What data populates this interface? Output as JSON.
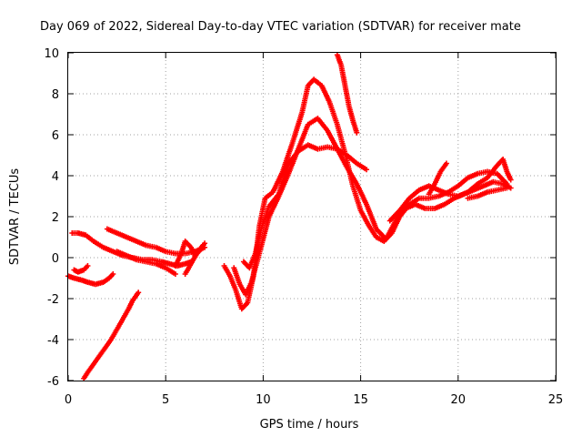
{
  "chart_data": {
    "type": "scatter",
    "title": "Day 069 of 2022, Sidereal Day-to-day VTEC variation (SDTVAR) for receiver mate",
    "xlabel": "GPS time / hours",
    "ylabel": "SDTVAR / TECUs",
    "xlim": [
      0,
      25
    ],
    "ylim": [
      -6,
      10
    ],
    "xticks": [
      "0",
      "5",
      "10",
      "15",
      "20",
      "25"
    ],
    "yticks": [
      "-6",
      "-4",
      "-2",
      "0",
      "2",
      "4",
      "6",
      "8",
      "10"
    ],
    "grid": true,
    "marker": "plus",
    "series": [
      {
        "color": "#ff0000",
        "segments": [
          {
            "x": [
              0.0,
              0.3,
              0.7,
              1.0,
              1.4,
              1.8,
              2.1,
              2.3
            ],
            "y": [
              -0.9,
              -1.0,
              -1.1,
              -1.2,
              -1.3,
              -1.2,
              -1.0,
              -0.8
            ]
          },
          {
            "x": [
              0.3,
              0.5,
              0.8,
              1.0
            ],
            "y": [
              -0.6,
              -0.7,
              -0.6,
              -0.4
            ]
          },
          {
            "x": [
              0.2,
              0.5,
              0.9,
              1.3,
              1.8,
              2.3,
              2.8,
              3.3,
              3.8,
              4.3,
              4.8,
              5.2,
              5.6,
              6.0,
              6.3
            ],
            "y": [
              1.2,
              1.2,
              1.1,
              0.8,
              0.5,
              0.3,
              0.1,
              0.0,
              -0.1,
              -0.1,
              -0.2,
              -0.3,
              -0.4,
              -0.3,
              -0.2
            ]
          },
          {
            "x": [
              0.8,
              1.0,
              1.3,
              1.6,
              1.9,
              2.2,
              2.5,
              2.8,
              3.1,
              3.3,
              3.6
            ],
            "y": [
              -5.9,
              -5.6,
              -5.2,
              -4.8,
              -4.4,
              -4.0,
              -3.5,
              -3.0,
              -2.5,
              -2.1,
              -1.7
            ]
          },
          {
            "x": [
              2.0,
              2.5,
              3.0,
              3.5,
              4.0,
              4.5,
              5.0,
              5.5,
              6.0,
              6.5,
              7.0
            ],
            "y": [
              1.4,
              1.2,
              1.0,
              0.8,
              0.6,
              0.5,
              0.3,
              0.2,
              0.2,
              0.3,
              0.5
            ]
          },
          {
            "x": [
              2.5,
              3.0,
              3.5,
              4.0,
              4.5,
              5.0,
              5.5
            ],
            "y": [
              0.3,
              0.1,
              -0.1,
              -0.2,
              -0.3,
              -0.5,
              -0.8
            ]
          },
          {
            "x": [
              5.5,
              5.8,
              6.0,
              6.3,
              6.5,
              6.8,
              7.0
            ],
            "y": [
              -0.4,
              0.2,
              0.8,
              0.5,
              0.1,
              0.4,
              0.7
            ]
          },
          {
            "x": [
              6.0,
              6.3,
              6.6,
              6.9
            ],
            "y": [
              -0.8,
              -0.3,
              0.2,
              0.6
            ]
          },
          {
            "x": [
              8.0,
              8.3,
              8.6,
              8.9,
              9.2,
              9.5,
              9.8,
              10.1,
              10.5,
              11.0,
              11.5,
              12.0,
              12.3,
              12.6,
              13.0,
              13.4,
              13.8,
              14.2,
              14.6,
              15.0,
              15.4,
              15.8,
              16.2,
              16.6,
              17.0,
              17.5,
              18.0,
              18.5,
              19.0,
              19.5,
              20.0,
              20.5,
              21.0,
              21.5,
              22.0,
              22.5
            ],
            "y": [
              -0.4,
              -0.9,
              -1.6,
              -2.5,
              -2.2,
              -0.9,
              1.5,
              2.9,
              3.2,
              4.2,
              5.6,
              7.1,
              8.4,
              8.7,
              8.4,
              7.6,
              6.5,
              5.1,
              3.5,
              2.3,
              1.6,
              1.0,
              0.8,
              1.2,
              2.0,
              2.6,
              2.9,
              2.9,
              3.0,
              3.2,
              3.5,
              3.9,
              4.1,
              4.2,
              4.1,
              3.6
            ]
          },
          {
            "x": [
              8.5,
              8.8,
              9.1,
              9.4,
              9.8,
              10.3,
              10.8,
              11.3,
              11.8,
              12.3,
              12.8,
              13.3,
              13.8,
              14.3,
              14.8,
              15.3,
              15.8,
              16.3,
              16.8,
              17.3,
              17.8,
              18.3,
              18.8,
              19.3,
              19.8,
              20.3,
              20.8,
              21.3,
              21.8,
              22.3,
              22.7
            ],
            "y": [
              -0.5,
              -1.3,
              -1.8,
              -1.2,
              0.2,
              2.0,
              3.0,
              4.1,
              5.3,
              6.5,
              6.8,
              6.2,
              5.3,
              4.4,
              3.6,
              2.6,
              1.4,
              0.9,
              1.8,
              2.4,
              2.6,
              2.4,
              2.4,
              2.6,
              2.9,
              3.1,
              3.3,
              3.5,
              3.7,
              3.6,
              3.4
            ]
          },
          {
            "x": [
              9.0,
              9.3,
              9.6,
              9.9,
              10.3,
              10.8,
              11.3,
              11.8,
              12.3,
              12.8,
              13.3,
              13.8,
              14.3,
              14.8,
              15.3
            ],
            "y": [
              -0.2,
              -0.5,
              0.2,
              1.4,
              2.5,
              3.1,
              4.6,
              5.2,
              5.5,
              5.3,
              5.4,
              5.3,
              5.0,
              4.6,
              4.3
            ]
          },
          {
            "x": [
              13.8,
              14.0,
              14.2,
              14.4,
              14.6,
              14.8
            ],
            "y": [
              9.9,
              9.4,
              8.4,
              7.4,
              6.7,
              6.1
            ]
          },
          {
            "x": [
              16.5,
              17.0,
              17.5,
              18.0,
              18.5,
              19.0,
              19.5,
              20.0,
              20.5,
              21.0,
              21.5,
              22.0,
              22.3,
              22.5,
              22.7
            ],
            "y": [
              1.8,
              2.3,
              2.9,
              3.3,
              3.5,
              3.3,
              3.1,
              3.0,
              3.2,
              3.6,
              3.9,
              4.5,
              4.8,
              4.2,
              3.8
            ]
          },
          {
            "x": [
              18.5,
              18.8,
              19.1,
              19.4
            ],
            "y": [
              3.1,
              3.6,
              4.2,
              4.6
            ]
          },
          {
            "x": [
              20.5,
              21.0,
              21.5,
              22.0,
              22.5
            ],
            "y": [
              2.9,
              3.0,
              3.2,
              3.3,
              3.4
            ]
          }
        ]
      }
    ]
  }
}
